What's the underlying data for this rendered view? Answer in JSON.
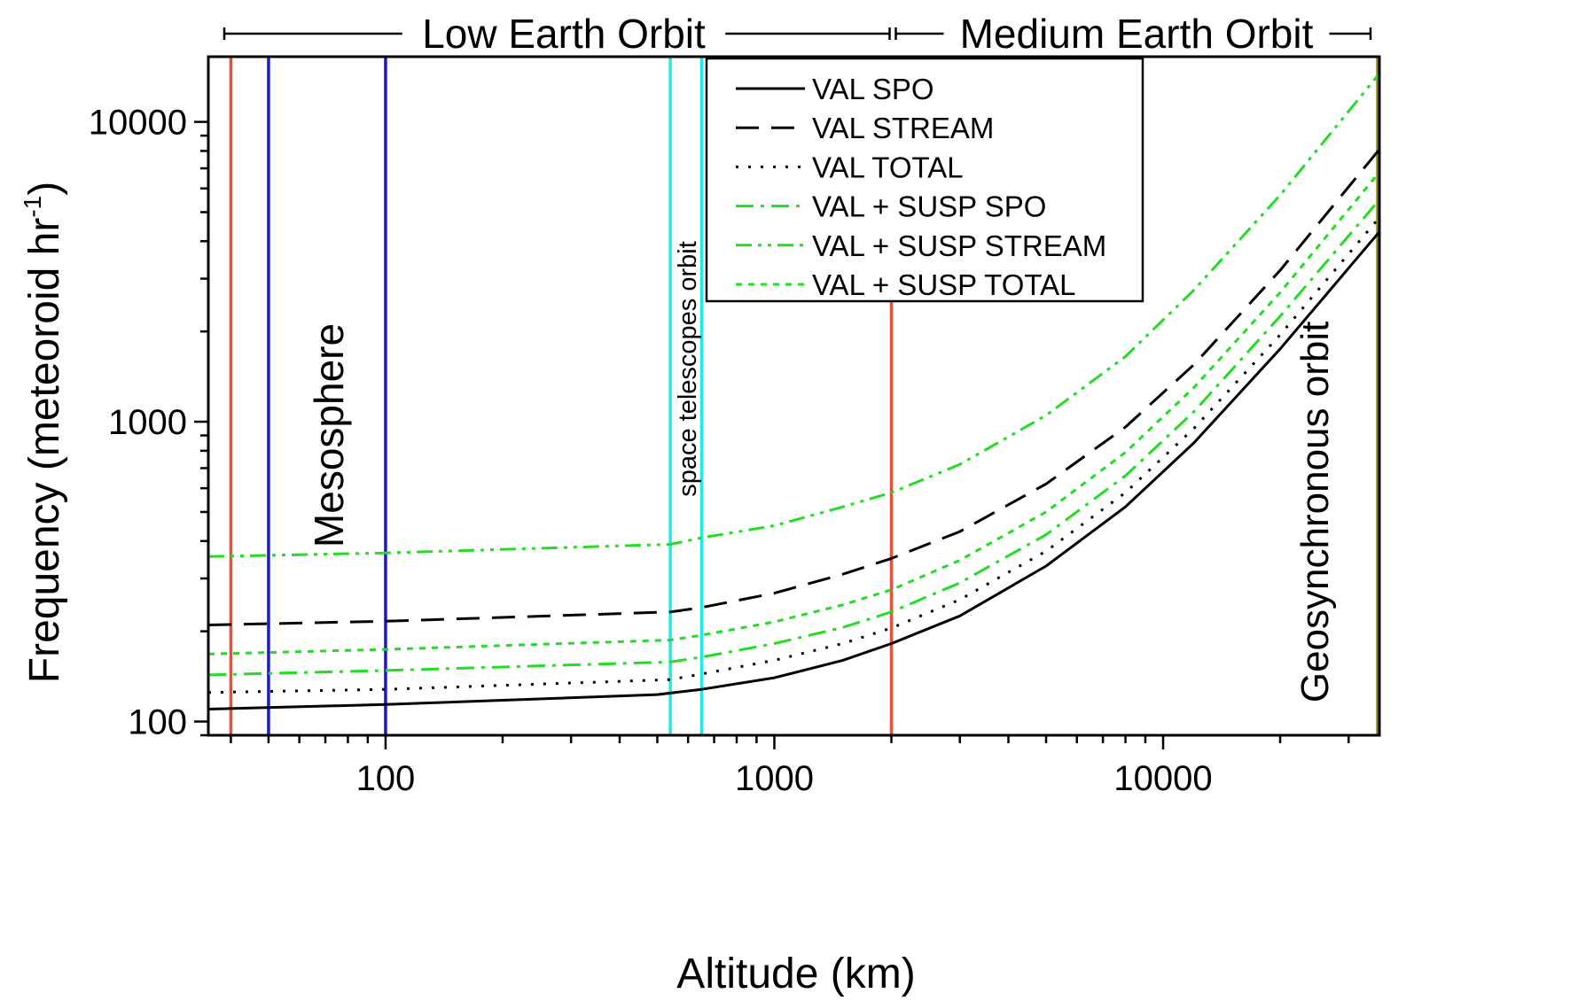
{
  "chart_data": {
    "type": "line",
    "xscale": "log",
    "yscale": "log",
    "xlabel": "Altitude (km)",
    "ylabel_main": "Frequency (meteoroid hr",
    "ylabel_sup": "-1",
    "ylabel_end": ")",
    "xlim": [
      35,
      36000
    ],
    "ylim": [
      90,
      16500
    ],
    "xticks": [
      {
        "v": 100,
        "label": "100"
      },
      {
        "v": 1000,
        "label": "1000"
      },
      {
        "v": 10000,
        "label": "10000"
      }
    ],
    "yticks": [
      {
        "v": 100,
        "label": "100"
      },
      {
        "v": 1000,
        "label": "1000"
      },
      {
        "v": 10000,
        "label": "10000"
      }
    ],
    "series": [
      {
        "name": "VAL SPO",
        "style": "solid",
        "color": "#000000",
        "x": [
          35,
          100,
          500,
          650,
          1000,
          1500,
          2000,
          3000,
          5000,
          8000,
          12000,
          20000,
          36000
        ],
        "y": [
          110,
          114,
          123,
          128,
          140,
          160,
          182,
          225,
          330,
          520,
          850,
          1750,
          4300
        ]
      },
      {
        "name": "VAL STREAM",
        "style": "dash",
        "color": "#000000",
        "x": [
          35,
          100,
          540,
          650,
          1000,
          1500,
          2000,
          3000,
          5000,
          8000,
          12000,
          20000,
          36000
        ],
        "y": [
          210,
          216,
          232,
          240,
          268,
          310,
          350,
          430,
          620,
          960,
          1550,
          3200,
          8100
        ]
      },
      {
        "name": "VAL TOTAL",
        "style": "dot",
        "color": "#000000",
        "x": [
          35,
          100,
          540,
          650,
          1000,
          1500,
          2000,
          3000,
          5000,
          8000,
          12000,
          20000,
          36000
        ],
        "y": [
          125,
          128,
          138,
          144,
          160,
          182,
          205,
          255,
          370,
          580,
          950,
          1950,
          4800
        ]
      },
      {
        "name": "VAL + SUSP SPO",
        "style": "dashdot",
        "color": "#22dd22",
        "x": [
          35,
          100,
          540,
          650,
          1000,
          1500,
          2000,
          3000,
          5000,
          8000,
          12000,
          20000,
          36000
        ],
        "y": [
          143,
          148,
          158,
          164,
          182,
          206,
          232,
          290,
          420,
          660,
          1080,
          2250,
          5500
        ]
      },
      {
        "name": "VAL + SUSP STREAM",
        "style": "dashdotdot",
        "color": "#22dd22",
        "x": [
          35,
          100,
          540,
          650,
          1000,
          1500,
          2000,
          3000,
          5000,
          8000,
          12000,
          20000,
          36000
        ],
        "y": [
          355,
          365,
          390,
          410,
          450,
          520,
          580,
          720,
          1050,
          1650,
          2750,
          5700,
          14500
        ]
      },
      {
        "name": "VAL + SUSP TOTAL",
        "style": "shortdot",
        "color": "#22dd22",
        "x": [
          35,
          100,
          540,
          650,
          1000,
          1500,
          2000,
          3000,
          5000,
          8000,
          12000,
          20000,
          36000
        ],
        "y": [
          168,
          174,
          187,
          194,
          215,
          245,
          275,
          345,
          500,
          790,
          1300,
          2700,
          6800
        ]
      }
    ],
    "vlines": [
      {
        "x": 40,
        "color": "#e8503a"
      },
      {
        "x": 50,
        "color": "#1a1acc"
      },
      {
        "x": 100,
        "color": "#1a1acc"
      },
      {
        "x": 540,
        "color": "#22e8e8"
      },
      {
        "x": 650,
        "color": "#22e8e8"
      },
      {
        "x": 2000,
        "color": "#e8503a"
      },
      {
        "x": 35786,
        "color": "#8a8a1a"
      }
    ],
    "annotations": [
      {
        "text": "Mesosphere",
        "x": 70,
        "y": 900
      },
      {
        "text": "space telescopes orbit",
        "x": 590,
        "y": 1500
      },
      {
        "text": "Geosynchronous orbit",
        "x": 29000,
        "y": 500
      }
    ],
    "orbit_bands": [
      {
        "label": "Low Earth Orbit",
        "x_start": 35,
        "x_end": 2000
      },
      {
        "label": "Medium Earth Orbit",
        "x_start": 2000,
        "x_end": 36000
      }
    ],
    "legend_position": "top-right"
  }
}
